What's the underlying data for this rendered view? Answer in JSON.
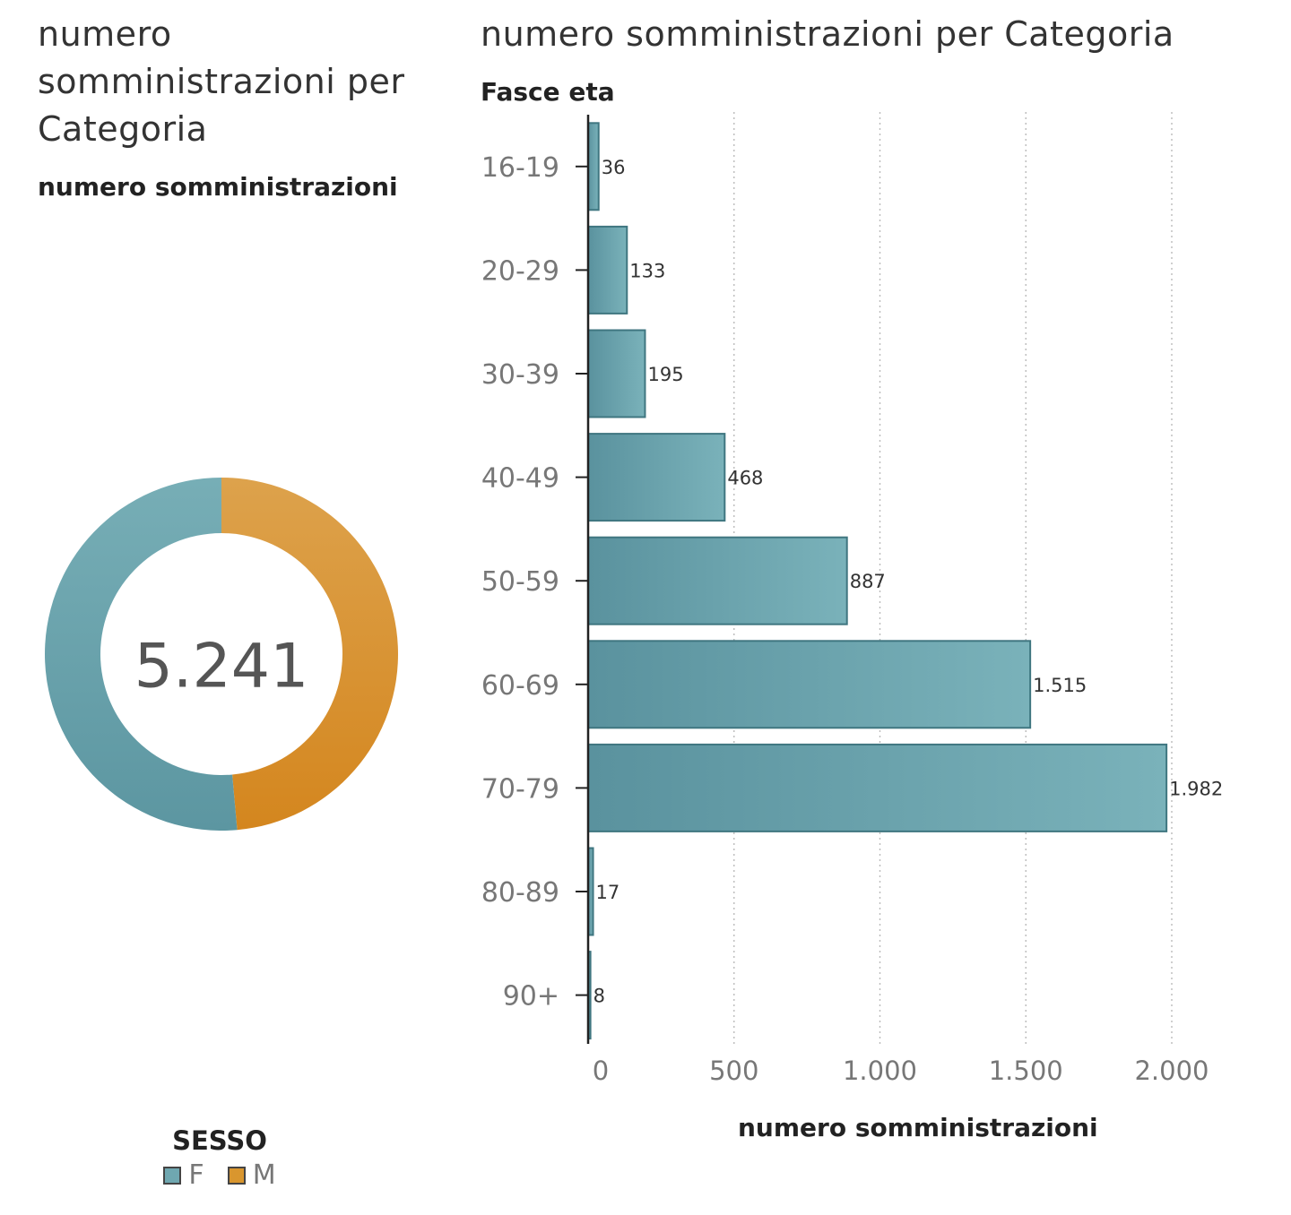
{
  "left_panel": {
    "title": "numero somministrazioni per Categoria",
    "subtitle": "numero somministrazioni",
    "total": "5.241"
  },
  "right_panel": {
    "title": "numero somministrazioni per Categoria"
  },
  "legend": {
    "title": "SESSO",
    "items": [
      {
        "label": "F",
        "color": "#6fa7b0"
      },
      {
        "label": "M",
        "color": "#d9962e"
      }
    ]
  },
  "colors": {
    "bar_dark": "#5a929e",
    "bar_light": "#7ab2ba",
    "bar_stroke": "#3f7680",
    "female": "#6fa7b0",
    "male": "#d9962e"
  },
  "chart_data": [
    {
      "type": "pie",
      "variant": "donut",
      "center_label": "5.241",
      "categories": [
        "F",
        "M"
      ],
      "values": [
        2695,
        2546
      ],
      "legend_title": "SESSO",
      "legend_position": "bottom"
    },
    {
      "type": "bar",
      "orientation": "horizontal",
      "categories": [
        "16-19",
        "20-29",
        "30-39",
        "40-49",
        "50-59",
        "60-69",
        "70-79",
        "80-89",
        "90+"
      ],
      "values": [
        36,
        133,
        195,
        468,
        887,
        1515,
        1982,
        17,
        8
      ],
      "data_labels": [
        "36",
        "133",
        "195",
        "468",
        "887",
        "1.515",
        "1.982",
        "17",
        "8"
      ],
      "ylabel": "Fasce eta",
      "xlabel": "numero somministrazioni",
      "xlim": [
        0,
        2000
      ],
      "xticks": [
        0,
        500,
        1000,
        1500,
        2000
      ],
      "xtick_labels": [
        "0",
        "500",
        "1.000",
        "1.500",
        "2.000"
      ],
      "grid": "vertical dotted"
    }
  ]
}
